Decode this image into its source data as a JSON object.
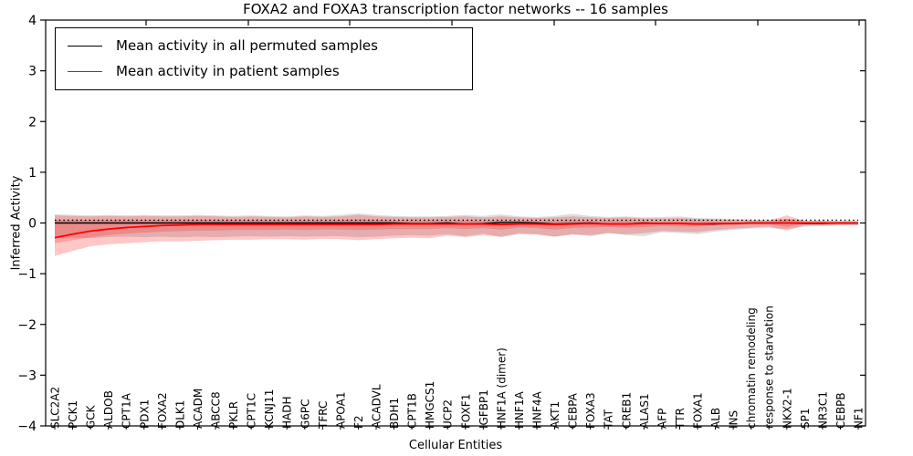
{
  "title": "FOXA2 and FOXA3 transcription factor networks -- 16 samples",
  "chart_data": {
    "type": "line",
    "title": "FOXA2 and FOXA3 transcription factor networks -- 16 samples",
    "xlabel": "Cellular Entities",
    "ylabel": "Inferred Activity",
    "ylim": [
      -4,
      4
    ],
    "yticks": [
      4,
      3,
      2,
      1,
      0,
      -1,
      -2,
      -3,
      -4
    ],
    "grid": false,
    "legend": {
      "position": "upper left",
      "items": [
        {
          "label": "Mean activity in all permuted samples",
          "color": "#000000"
        },
        {
          "label": "Mean activity in patient samples",
          "color": "#ff0000"
        }
      ]
    },
    "categories": [
      "SLC2A2",
      "PCK1",
      "GCK",
      "ALDOB",
      "CPT1A",
      "PDX1",
      "FOXA2",
      "DLK1",
      "ACADM",
      "ABCC8",
      "PKLR",
      "CPT1C",
      "KCNJ11",
      "HADH",
      "G6PC",
      "TFRC",
      "APOA1",
      "F2",
      "ACADVL",
      "BDH1",
      "CPT1B",
      "HMGCS1",
      "UCP2",
      "FOXF1",
      "IGFBP1",
      "HNF1A (dimer)",
      "HNF1A",
      "HNF4A",
      "AKT1",
      "CEBPA",
      "FOXA3",
      "TAT",
      "CREB1",
      "ALAS1",
      "AFP",
      "TTR",
      "FOXA1",
      "ALB",
      "INS",
      "chromatin remodeling",
      "response to starvation",
      "NKX2-1",
      "SP1",
      "NR3C1",
      "CEBPB",
      "NF1"
    ],
    "series": [
      {
        "name": "Mean activity in all permuted samples",
        "color": "#000000",
        "style": "solid",
        "values": [
          0,
          0,
          0,
          0,
          0,
          0,
          0,
          0,
          0,
          0,
          0,
          0,
          0,
          0,
          0,
          0,
          0,
          0,
          0,
          0,
          -0.01,
          -0.01,
          0,
          -0.02,
          -0.01,
          0.01,
          0.01,
          0,
          -0.02,
          -0.01,
          0,
          -0.02,
          -0.02,
          0,
          -0.01,
          -0.01,
          -0.02,
          -0.02,
          -0.01,
          0,
          0,
          0,
          -0.01,
          -0.01,
          0,
          0
        ]
      },
      {
        "name": "Mean activity in patient samples",
        "color": "#ff0000",
        "style": "solid",
        "values": [
          -0.29,
          -0.22,
          -0.16,
          -0.12,
          -0.09,
          -0.07,
          -0.05,
          -0.04,
          -0.03,
          -0.03,
          -0.03,
          -0.03,
          -0.03,
          -0.03,
          -0.03,
          -0.03,
          -0.03,
          -0.03,
          -0.03,
          -0.02,
          -0.02,
          -0.02,
          -0.02,
          -0.02,
          -0.02,
          -0.03,
          -0.02,
          -0.02,
          -0.03,
          -0.02,
          -0.01,
          -0.02,
          -0.02,
          -0.01,
          -0.01,
          -0.01,
          -0.02,
          -0.01,
          -0.01,
          0,
          0,
          0,
          0,
          0,
          0,
          0
        ]
      }
    ],
    "reference_line": {
      "name": "zero-reference-dotted",
      "color": "#000000",
      "style": "dotted",
      "value": 0.055
    },
    "bands": [
      {
        "name": "permuted-samples-range",
        "color": "rgba(0,0,0,0.13)",
        "upper": [
          0.17,
          0.16,
          0.15,
          0.16,
          0.15,
          0.16,
          0.15,
          0.15,
          0.16,
          0.15,
          0.14,
          0.15,
          0.14,
          0.13,
          0.15,
          0.14,
          0.16,
          0.19,
          0.16,
          0.14,
          0.13,
          0.13,
          0.14,
          0.16,
          0.14,
          0.17,
          0.13,
          0.12,
          0.14,
          0.18,
          0.14,
          0.12,
          0.13,
          0.11,
          0.12,
          0.13,
          0.1,
          0.09,
          0.08,
          0.07,
          0.06,
          0.08,
          0.05,
          0.05,
          0.04,
          0.04
        ],
        "lower": [
          -0.3,
          -0.29,
          -0.3,
          -0.28,
          -0.27,
          -0.28,
          -0.27,
          -0.28,
          -0.27,
          -0.28,
          -0.27,
          -0.26,
          -0.27,
          -0.26,
          -0.27,
          -0.26,
          -0.26,
          -0.28,
          -0.27,
          -0.25,
          -0.24,
          -0.25,
          -0.22,
          -0.26,
          -0.21,
          -0.28,
          -0.2,
          -0.22,
          -0.27,
          -0.22,
          -0.26,
          -0.2,
          -0.24,
          -0.26,
          -0.18,
          -0.2,
          -0.22,
          -0.17,
          -0.14,
          -0.11,
          -0.1,
          -0.12,
          -0.07,
          -0.06,
          -0.05,
          -0.05
        ]
      },
      {
        "name": "patient-samples-range-outer",
        "color": "rgba(255,0,0,0.22)",
        "upper": [
          0.15,
          0.14,
          0.13,
          0.14,
          0.13,
          0.14,
          0.13,
          0.13,
          0.14,
          0.13,
          0.12,
          0.13,
          0.12,
          0.11,
          0.13,
          0.12,
          0.13,
          0.16,
          0.13,
          0.12,
          0.11,
          0.11,
          0.12,
          0.13,
          0.11,
          0.13,
          0.11,
          0.1,
          0.11,
          0.13,
          0.11,
          0.1,
          0.11,
          0.09,
          0.09,
          0.1,
          0.08,
          0.07,
          0.06,
          0.05,
          0.05,
          0.15,
          0.04,
          0.04,
          0.03,
          0.03
        ],
        "lower": [
          -0.65,
          -0.55,
          -0.46,
          -0.42,
          -0.4,
          -0.38,
          -0.36,
          -0.36,
          -0.35,
          -0.34,
          -0.33,
          -0.33,
          -0.32,
          -0.32,
          -0.33,
          -0.31,
          -0.32,
          -0.34,
          -0.32,
          -0.3,
          -0.29,
          -0.3,
          -0.25,
          -0.28,
          -0.24,
          -0.27,
          -0.22,
          -0.23,
          -0.27,
          -0.23,
          -0.24,
          -0.2,
          -0.22,
          -0.2,
          -0.16,
          -0.17,
          -0.18,
          -0.14,
          -0.11,
          -0.09,
          -0.07,
          -0.15,
          -0.05,
          -0.05,
          -0.04,
          -0.04
        ]
      },
      {
        "name": "patient-samples-range-inner",
        "color": "rgba(255,0,0,0.20)",
        "upper": [
          0.06,
          0.06,
          0.06,
          0.06,
          0.06,
          0.06,
          0.06,
          0.06,
          0.06,
          0.06,
          0.06,
          0.06,
          0.06,
          0.05,
          0.06,
          0.05,
          0.06,
          0.07,
          0.06,
          0.05,
          0.05,
          0.05,
          0.05,
          0.05,
          0.04,
          0.05,
          0.04,
          0.04,
          0.04,
          0.05,
          0.04,
          0.04,
          0.04,
          0.03,
          0.03,
          0.03,
          0.03,
          0.02,
          0.02,
          0.02,
          0.02,
          0.08,
          0.02,
          0.02,
          0.01,
          0.01
        ],
        "lower": [
          -0.4,
          -0.34,
          -0.28,
          -0.24,
          -0.21,
          -0.19,
          -0.17,
          -0.16,
          -0.15,
          -0.15,
          -0.14,
          -0.14,
          -0.14,
          -0.13,
          -0.14,
          -0.13,
          -0.13,
          -0.14,
          -0.13,
          -0.12,
          -0.12,
          -0.12,
          -0.1,
          -0.12,
          -0.1,
          -0.13,
          -0.09,
          -0.1,
          -0.13,
          -0.1,
          -0.09,
          -0.08,
          -0.09,
          -0.08,
          -0.06,
          -0.07,
          -0.07,
          -0.05,
          -0.04,
          -0.03,
          -0.03,
          -0.08,
          -0.02,
          -0.02,
          -0.02,
          -0.02
        ]
      }
    ]
  }
}
